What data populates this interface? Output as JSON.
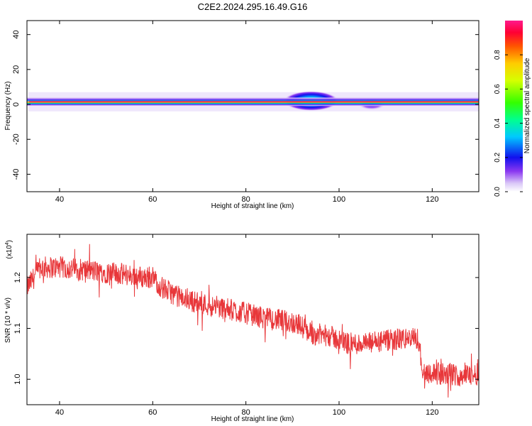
{
  "title": "C2E2.2024.295.16.49.G16",
  "chart_data": [
    {
      "type": "heatmap",
      "panel": "spectrogram",
      "xlabel": "Height of straight line (km)",
      "ylabel": "Frequency (Hz)",
      "xlim": [
        33,
        130
      ],
      "ylim": [
        -50,
        48
      ],
      "xticks": [
        40,
        60,
        80,
        100,
        120
      ],
      "yticks": [
        -40,
        -20,
        0,
        20,
        40
      ],
      "colorbar": {
        "label": "Normalized spectral amplitude",
        "range": [
          0.0,
          1.0
        ],
        "ticks": [
          0.0,
          0.2,
          0.4,
          0.6,
          0.8
        ]
      },
      "band": {
        "center_hz": 1.5,
        "core_halfwidth_hz": 1.5,
        "wide_halfwidth_hz": 4.0,
        "features": [
          {
            "x_range": [
              88,
              100
            ],
            "description_values": {
              "center_hz": 2.0,
              "halfwidth_hz": 4.5,
              "amplitude": 0.5
            }
          },
          {
            "x_range": [
              104,
              110
            ],
            "description_values": {
              "center_hz": 0.0,
              "halfwidth_hz": 2.0,
              "amplitude": 0.3
            }
          }
        ]
      },
      "grid": false
    },
    {
      "type": "line",
      "panel": "snr",
      "xlabel": "Height of straight line (km)",
      "ylabel": "SNR (10 * v/v)",
      "ymultiplier_label": "(x10",
      "ymultiplier_exp": "4",
      "xlim": [
        33,
        130
      ],
      "ylim": [
        0.95,
        1.285
      ],
      "xticks": [
        40,
        60,
        80,
        100,
        120
      ],
      "yticks": [
        1.0,
        1.1,
        1.2
      ],
      "yticklabels": [
        "1.0",
        "1.1",
        "1.2"
      ],
      "series": [
        {
          "color": "#e8373a",
          "trend": {
            "x": [
              33,
              36,
              40,
              45,
              50,
              55,
              58,
              60,
              62,
              66,
              70,
              75,
              80,
              84,
              88,
              91,
              94,
              98,
              102,
              106,
              110,
              114,
              117,
              118,
              122,
              126,
              130
            ],
            "y": [
              1.18,
              1.22,
              1.22,
              1.215,
              1.21,
              1.205,
              1.2,
              1.2,
              1.18,
              1.16,
              1.15,
              1.14,
              1.13,
              1.12,
              1.115,
              1.11,
              1.09,
              1.085,
              1.07,
              1.07,
              1.075,
              1.08,
              1.08,
              1.015,
              1.01,
              1.008,
              1.01
            ]
          },
          "noise_amplitude": 0.022
        }
      ]
    }
  ]
}
